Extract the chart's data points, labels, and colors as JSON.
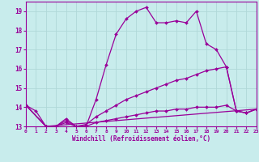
{
  "xlabel": "Windchill (Refroidissement éolien,°C)",
  "bg_color": "#c8ecec",
  "grid_color": "#aadddd",
  "line_color": "#990099",
  "xmin": 0,
  "xmax": 23,
  "ymin": 13,
  "ymax": 19.5,
  "yticks": [
    13,
    14,
    15,
    16,
    17,
    18,
    19
  ],
  "line1_x": [
    0,
    1,
    2,
    3,
    4,
    5,
    6,
    7,
    8,
    9,
    10,
    11,
    12,
    13,
    14,
    15,
    16,
    17,
    18,
    19,
    20,
    21,
    22,
    23
  ],
  "line1_y": [
    14.1,
    13.8,
    13.0,
    13.0,
    13.4,
    13.0,
    13.0,
    14.4,
    16.2,
    17.8,
    18.6,
    19.0,
    19.2,
    18.4,
    18.4,
    18.5,
    18.4,
    19.0,
    17.3,
    17.0,
    16.1,
    13.8,
    13.7,
    13.9
  ],
  "line2_x": [
    0,
    2,
    3,
    4,
    5,
    6,
    7,
    8,
    9,
    10,
    11,
    12,
    13,
    14,
    15,
    16,
    17,
    18,
    19,
    20,
    21,
    22,
    23
  ],
  "line2_y": [
    14.1,
    13.0,
    13.0,
    13.3,
    13.0,
    13.1,
    13.5,
    13.8,
    14.1,
    14.4,
    14.6,
    14.8,
    15.0,
    15.2,
    15.4,
    15.5,
    15.7,
    15.9,
    16.0,
    16.1,
    13.8,
    13.7,
    13.9
  ],
  "line3_x": [
    0,
    2,
    3,
    4,
    5,
    6,
    7,
    8,
    9,
    10,
    11,
    12,
    13,
    14,
    15,
    16,
    17,
    18,
    19,
    20,
    21,
    22,
    23
  ],
  "line3_y": [
    14.1,
    13.0,
    13.0,
    13.2,
    13.0,
    13.0,
    13.2,
    13.3,
    13.4,
    13.5,
    13.6,
    13.7,
    13.8,
    13.8,
    13.9,
    13.9,
    14.0,
    14.0,
    14.0,
    14.1,
    13.8,
    13.7,
    13.9
  ],
  "line4_x": [
    0,
    2,
    23
  ],
  "line4_y": [
    14.1,
    13.0,
    13.9
  ]
}
